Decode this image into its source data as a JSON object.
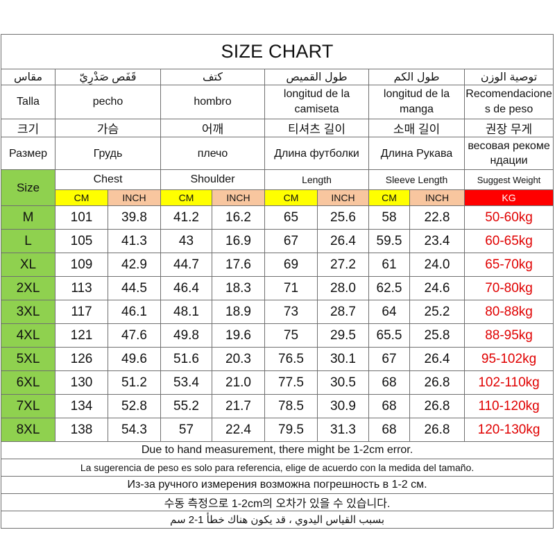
{
  "title": "SIZE CHART",
  "labels": {
    "ar": [
      "مقاس",
      "قَفَص صَدْرِيّ",
      "كتف",
      "طول القميص",
      "طول الكم",
      "توصية الوزن"
    ],
    "es": [
      "Talla",
      "pecho",
      "hombro",
      "longitud de la camiseta",
      "longitud de la manga",
      "Recomendaciones de peso"
    ],
    "ko": [
      "크기",
      "가슴",
      "어깨",
      "티셔츠 길이",
      "소매 길이",
      "권장 무게"
    ],
    "ru": [
      "Размер",
      "Грудь",
      "плечо",
      "Длина футболки",
      "Длина Рукава",
      "весовая рекомендации"
    ],
    "en": {
      "size": "Size",
      "chest": "Chest",
      "shoulder": "Shoulder",
      "length": "Length",
      "sleeve": "Sleeve Length",
      "weight": "Suggest Weight"
    }
  },
  "units": {
    "cm": "CM",
    "inch": "INCH",
    "kg": "KG"
  },
  "colors": {
    "size_green": "#8fd14f",
    "cm_yellow": "#ffff00",
    "inch_peach": "#f8c69f",
    "kg_red": "#ff0000",
    "weight_text": "#e00000"
  },
  "rows": [
    {
      "size": "M",
      "chest_cm": "101",
      "chest_in": "39.8",
      "shoulder_cm": "41.2",
      "shoulder_in": "16.2",
      "length_cm": "65",
      "length_in": "25.6",
      "sleeve_cm": "58",
      "sleeve_in": "22.8",
      "weight": "50-60kg"
    },
    {
      "size": "L",
      "chest_cm": "105",
      "chest_in": "41.3",
      "shoulder_cm": "43",
      "shoulder_in": "16.9",
      "length_cm": "67",
      "length_in": "26.4",
      "sleeve_cm": "59.5",
      "sleeve_in": "23.4",
      "weight": "60-65kg"
    },
    {
      "size": "XL",
      "chest_cm": "109",
      "chest_in": "42.9",
      "shoulder_cm": "44.7",
      "shoulder_in": "17.6",
      "length_cm": "69",
      "length_in": "27.2",
      "sleeve_cm": "61",
      "sleeve_in": "24.0",
      "weight": "65-70kg"
    },
    {
      "size": "2XL",
      "chest_cm": "113",
      "chest_in": "44.5",
      "shoulder_cm": "46.4",
      "shoulder_in": "18.3",
      "length_cm": "71",
      "length_in": "28.0",
      "sleeve_cm": "62.5",
      "sleeve_in": "24.6",
      "weight": "70-80kg"
    },
    {
      "size": "3XL",
      "chest_cm": "117",
      "chest_in": "46.1",
      "shoulder_cm": "48.1",
      "shoulder_in": "18.9",
      "length_cm": "73",
      "length_in": "28.7",
      "sleeve_cm": "64",
      "sleeve_in": "25.2",
      "weight": "80-88kg"
    },
    {
      "size": "4XL",
      "chest_cm": "121",
      "chest_in": "47.6",
      "shoulder_cm": "49.8",
      "shoulder_in": "19.6",
      "length_cm": "75",
      "length_in": "29.5",
      "sleeve_cm": "65.5",
      "sleeve_in": "25.8",
      "weight": "88-95kg"
    },
    {
      "size": "5XL",
      "chest_cm": "126",
      "chest_in": "49.6",
      "shoulder_cm": "51.6",
      "shoulder_in": "20.3",
      "length_cm": "76.5",
      "length_in": "30.1",
      "sleeve_cm": "67",
      "sleeve_in": "26.4",
      "weight": "95-102kg"
    },
    {
      "size": "6XL",
      "chest_cm": "130",
      "chest_in": "51.2",
      "shoulder_cm": "53.4",
      "shoulder_in": "21.0",
      "length_cm": "77.5",
      "length_in": "30.5",
      "sleeve_cm": "68",
      "sleeve_in": "26.8",
      "weight": "102-110kg"
    },
    {
      "size": "7XL",
      "chest_cm": "134",
      "chest_in": "52.8",
      "shoulder_cm": "55.2",
      "shoulder_in": "21.7",
      "length_cm": "78.5",
      "length_in": "30.9",
      "sleeve_cm": "68",
      "sleeve_in": "26.8",
      "weight": "110-120kg"
    },
    {
      "size": "8XL",
      "chest_cm": "138",
      "chest_in": "54.3",
      "shoulder_cm": "57",
      "shoulder_in": "22.4",
      "length_cm": "79.5",
      "length_in": "31.3",
      "sleeve_cm": "68",
      "sleeve_in": "26.8",
      "weight": "120-130kg"
    }
  ],
  "notes": {
    "en": "Due to hand measurement, there might be 1-2cm error.",
    "es": "La sugerencia de peso es solo para referencia, elige de acuerdo con la medida del tamaño.",
    "ru": "Из-за ручного измерения возможна погрешность в 1-2 см.",
    "ko": "수동 측정으로 1-2cm의 오차가 있을 수 있습니다.",
    "ar": "بسبب القياس اليدوي ، قد يكون هناك خطأ 1-2 سم"
  }
}
